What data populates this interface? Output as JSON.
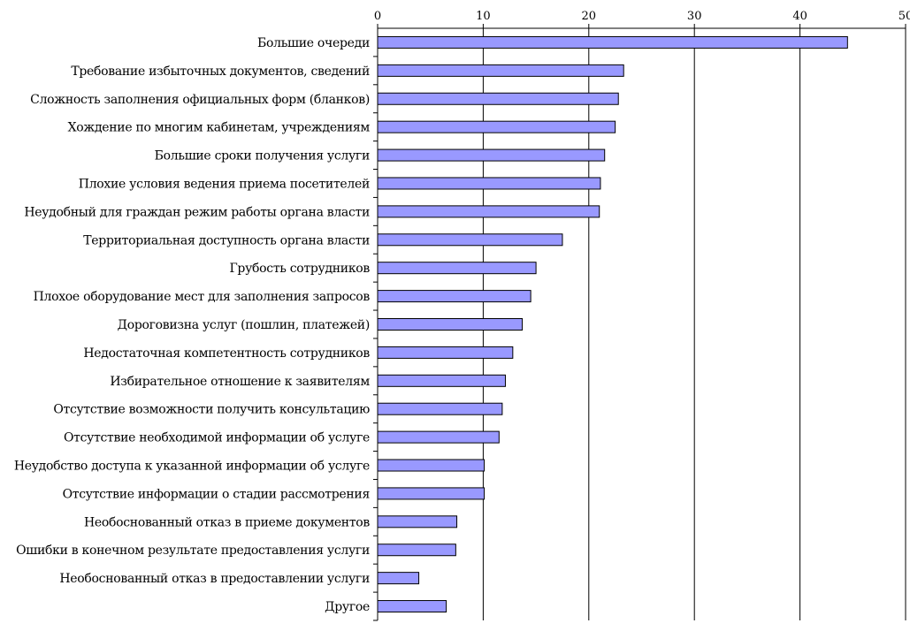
{
  "chart_data": {
    "type": "bar",
    "orientation": "horizontal",
    "categories": [
      "Большие очереди",
      "Требование избыточных документов, сведений",
      "Сложность заполнения официальных форм (бланков)",
      "Хождение по многим кабинетам, учреждениям",
      "Большие сроки получения услуги",
      "Плохие условия ведения приема посетителей",
      "Неудобный для граждан режим работы органа власти",
      "Территориальная доступность органа власти",
      "Грубость сотрудников",
      "Плохое оборудование мест для заполнения запросов",
      "Дороговизна услуг (пошлин, платежей)",
      "Недостаточная компетентность сотрудников",
      "Избирательное отношение к заявителям",
      "Отсутствие возможности получить консультацию",
      "Отсутствие необходимой информации об услуге",
      "Неудобство доступа к указанной информации об услуге",
      "Отсутствие информации о стадии рассмотрения",
      "Необоснованный отказ в приеме документов",
      "Ошибки в конечном результате предоставления услуги",
      "Необоснованный отказ в предоставлении услуги",
      "Другое"
    ],
    "values": [
      44.5,
      23.3,
      22.8,
      22.5,
      21.5,
      21.1,
      21.0,
      17.5,
      15.0,
      14.5,
      13.7,
      12.8,
      12.1,
      11.8,
      11.5,
      10.1,
      10.1,
      7.5,
      7.4,
      3.9,
      6.5
    ],
    "xticks": [
      "0",
      "10",
      "20",
      "30",
      "40",
      "50"
    ],
    "xlim": [
      0,
      50
    ],
    "axis_position": "top",
    "grid": true,
    "bar_color": "#9999ff",
    "bar_edge_color": "#000000",
    "title": "",
    "xlabel": "",
    "ylabel": ""
  }
}
